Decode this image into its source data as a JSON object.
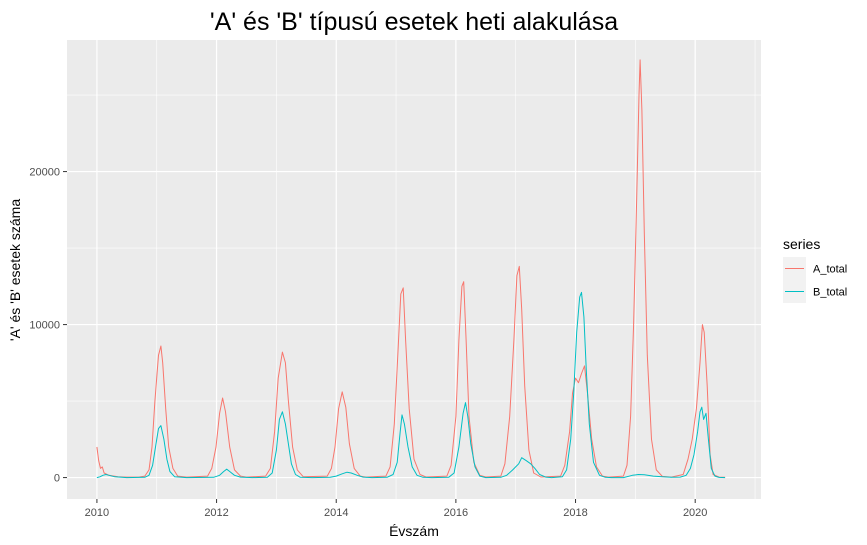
{
  "chart_data": {
    "type": "line",
    "title": "'A' és 'B' típusú esetek heti alakulása",
    "xlabel": "Évszám",
    "ylabel": "'A' és 'B' esetek száma",
    "x_ticks": [
      2010,
      2012,
      2014,
      2016,
      2018,
      2020
    ],
    "y_ticks": [
      0,
      10000,
      20000
    ],
    "xlim": [
      2009.5,
      2021.1
    ],
    "ylim": [
      -1400,
      28600
    ],
    "grid": true,
    "legend": {
      "title": "series",
      "placement": "right"
    },
    "series": [
      {
        "name": "A_total",
        "color": "#F8766D",
        "points": [
          [
            2010.0,
            2000
          ],
          [
            2010.03,
            1100
          ],
          [
            2010.06,
            600
          ],
          [
            2010.09,
            700
          ],
          [
            2010.12,
            300
          ],
          [
            2010.2,
            150
          ],
          [
            2010.35,
            60
          ],
          [
            2010.5,
            30
          ],
          [
            2010.7,
            30
          ],
          [
            2010.8,
            100
          ],
          [
            2010.87,
            500
          ],
          [
            2010.92,
            2000
          ],
          [
            2010.97,
            5000
          ],
          [
            2011.03,
            8000
          ],
          [
            2011.07,
            8600
          ],
          [
            2011.1,
            7500
          ],
          [
            2011.15,
            4500
          ],
          [
            2011.2,
            2000
          ],
          [
            2011.27,
            600
          ],
          [
            2011.35,
            100
          ],
          [
            2011.5,
            30
          ],
          [
            2011.85,
            100
          ],
          [
            2011.92,
            600
          ],
          [
            2011.99,
            2000
          ],
          [
            2012.05,
            4200
          ],
          [
            2012.1,
            5200
          ],
          [
            2012.15,
            4300
          ],
          [
            2012.22,
            2000
          ],
          [
            2012.3,
            500
          ],
          [
            2012.4,
            100
          ],
          [
            2012.5,
            30
          ],
          [
            2012.82,
            100
          ],
          [
            2012.9,
            600
          ],
          [
            2012.97,
            3000
          ],
          [
            2013.03,
            6500
          ],
          [
            2013.1,
            8200
          ],
          [
            2013.15,
            7500
          ],
          [
            2013.2,
            5000
          ],
          [
            2013.27,
            2000
          ],
          [
            2013.35,
            500
          ],
          [
            2013.45,
            50
          ],
          [
            2013.85,
            100
          ],
          [
            2013.92,
            600
          ],
          [
            2013.98,
            2000
          ],
          [
            2014.04,
            4500
          ],
          [
            2014.1,
            5600
          ],
          [
            2014.16,
            4600
          ],
          [
            2014.22,
            2200
          ],
          [
            2014.3,
            600
          ],
          [
            2014.4,
            100
          ],
          [
            2014.5,
            30
          ],
          [
            2014.83,
            100
          ],
          [
            2014.9,
            700
          ],
          [
            2014.97,
            3500
          ],
          [
            2015.03,
            8000
          ],
          [
            2015.08,
            12000
          ],
          [
            2015.12,
            12400
          ],
          [
            2015.16,
            9000
          ],
          [
            2015.22,
            4500
          ],
          [
            2015.3,
            1200
          ],
          [
            2015.4,
            200
          ],
          [
            2015.5,
            40
          ],
          [
            2015.85,
            100
          ],
          [
            2015.92,
            800
          ],
          [
            2016.0,
            4000
          ],
          [
            2016.05,
            9000
          ],
          [
            2016.1,
            12500
          ],
          [
            2016.13,
            12800
          ],
          [
            2016.17,
            9000
          ],
          [
            2016.22,
            4000
          ],
          [
            2016.3,
            1000
          ],
          [
            2016.4,
            150
          ],
          [
            2016.5,
            40
          ],
          [
            2016.75,
            100
          ],
          [
            2016.82,
            900
          ],
          [
            2016.9,
            4000
          ],
          [
            2016.97,
            9000
          ],
          [
            2017.02,
            13200
          ],
          [
            2017.06,
            13800
          ],
          [
            2017.1,
            11000
          ],
          [
            2017.15,
            6000
          ],
          [
            2017.22,
            1800
          ],
          [
            2017.3,
            300
          ],
          [
            2017.42,
            40
          ],
          [
            2017.75,
            100
          ],
          [
            2017.82,
            800
          ],
          [
            2017.9,
            3000
          ],
          [
            2017.95,
            5500
          ],
          [
            2018.0,
            6500
          ],
          [
            2018.05,
            6200
          ],
          [
            2018.1,
            6800
          ],
          [
            2018.15,
            7300
          ],
          [
            2018.2,
            5500
          ],
          [
            2018.27,
            2500
          ],
          [
            2018.35,
            700
          ],
          [
            2018.45,
            100
          ],
          [
            2018.55,
            30
          ],
          [
            2018.8,
            100
          ],
          [
            2018.86,
            800
          ],
          [
            2018.92,
            4000
          ],
          [
            2018.97,
            10000
          ],
          [
            2019.02,
            18000
          ],
          [
            2019.06,
            25000
          ],
          [
            2019.08,
            27300
          ],
          [
            2019.11,
            24000
          ],
          [
            2019.15,
            16000
          ],
          [
            2019.2,
            8000
          ],
          [
            2019.27,
            2500
          ],
          [
            2019.35,
            500
          ],
          [
            2019.45,
            80
          ],
          [
            2019.6,
            30
          ],
          [
            2019.8,
            200
          ],
          [
            2019.88,
            1200
          ],
          [
            2019.95,
            2500
          ],
          [
            2020.02,
            4500
          ],
          [
            2020.08,
            7500
          ],
          [
            2020.12,
            10000
          ],
          [
            2020.15,
            9500
          ],
          [
            2020.2,
            6000
          ],
          [
            2020.25,
            1500
          ],
          [
            2020.3,
            200
          ],
          [
            2020.4,
            30
          ],
          [
            2020.5,
            20
          ]
        ]
      },
      {
        "name": "B_total",
        "color": "#00BFC4",
        "points": [
          [
            2010.0,
            0
          ],
          [
            2010.05,
            50
          ],
          [
            2010.1,
            150
          ],
          [
            2010.15,
            200
          ],
          [
            2010.2,
            150
          ],
          [
            2010.3,
            50
          ],
          [
            2010.5,
            0
          ],
          [
            2010.8,
            20
          ],
          [
            2010.87,
            150
          ],
          [
            2010.93,
            800
          ],
          [
            2010.98,
            2000
          ],
          [
            2011.03,
            3200
          ],
          [
            2011.07,
            3400
          ],
          [
            2011.12,
            2500
          ],
          [
            2011.17,
            1200
          ],
          [
            2011.22,
            400
          ],
          [
            2011.3,
            50
          ],
          [
            2011.5,
            0
          ],
          [
            2011.95,
            20
          ],
          [
            2012.05,
            150
          ],
          [
            2012.12,
            400
          ],
          [
            2012.17,
            550
          ],
          [
            2012.22,
            400
          ],
          [
            2012.3,
            150
          ],
          [
            2012.4,
            30
          ],
          [
            2012.6,
            0
          ],
          [
            2012.85,
            20
          ],
          [
            2012.93,
            300
          ],
          [
            2013.0,
            1800
          ],
          [
            2013.05,
            3800
          ],
          [
            2013.1,
            4300
          ],
          [
            2013.15,
            3500
          ],
          [
            2013.2,
            2200
          ],
          [
            2013.25,
            900
          ],
          [
            2013.32,
            200
          ],
          [
            2013.4,
            20
          ],
          [
            2013.6,
            0
          ],
          [
            2013.9,
            20
          ],
          [
            2014.0,
            100
          ],
          [
            2014.1,
            250
          ],
          [
            2014.18,
            350
          ],
          [
            2014.25,
            300
          ],
          [
            2014.35,
            150
          ],
          [
            2014.45,
            30
          ],
          [
            2014.6,
            0
          ],
          [
            2014.85,
            20
          ],
          [
            2014.95,
            200
          ],
          [
            2015.02,
            1000
          ],
          [
            2015.07,
            3000
          ],
          [
            2015.1,
            4100
          ],
          [
            2015.14,
            3500
          ],
          [
            2015.2,
            2000
          ],
          [
            2015.27,
            700
          ],
          [
            2015.35,
            150
          ],
          [
            2015.45,
            20
          ],
          [
            2015.6,
            0
          ],
          [
            2015.88,
            20
          ],
          [
            2015.97,
            300
          ],
          [
            2016.05,
            2000
          ],
          [
            2016.12,
            4200
          ],
          [
            2016.16,
            4900
          ],
          [
            2016.2,
            4000
          ],
          [
            2016.25,
            2200
          ],
          [
            2016.32,
            700
          ],
          [
            2016.4,
            100
          ],
          [
            2016.5,
            0
          ],
          [
            2016.75,
            20
          ],
          [
            2016.85,
            150
          ],
          [
            2016.95,
            500
          ],
          [
            2017.05,
            900
          ],
          [
            2017.1,
            1300
          ],
          [
            2017.18,
            1100
          ],
          [
            2017.25,
            900
          ],
          [
            2017.32,
            600
          ],
          [
            2017.4,
            200
          ],
          [
            2017.5,
            30
          ],
          [
            2017.6,
            0
          ],
          [
            2017.78,
            50
          ],
          [
            2017.85,
            500
          ],
          [
            2017.92,
            2500
          ],
          [
            2017.97,
            5500
          ],
          [
            2018.02,
            9500
          ],
          [
            2018.07,
            11800
          ],
          [
            2018.1,
            12100
          ],
          [
            2018.14,
            10500
          ],
          [
            2018.18,
            7000
          ],
          [
            2018.23,
            3500
          ],
          [
            2018.3,
            1000
          ],
          [
            2018.4,
            150
          ],
          [
            2018.5,
            20
          ],
          [
            2018.6,
            0
          ],
          [
            2018.8,
            0
          ],
          [
            2018.95,
            150
          ],
          [
            2019.05,
            200
          ],
          [
            2019.15,
            180
          ],
          [
            2019.3,
            100
          ],
          [
            2019.45,
            50
          ],
          [
            2019.6,
            20
          ],
          [
            2019.75,
            30
          ],
          [
            2019.85,
            150
          ],
          [
            2019.92,
            600
          ],
          [
            2019.98,
            1500
          ],
          [
            2020.04,
            3000
          ],
          [
            2020.08,
            4300
          ],
          [
            2020.11,
            4600
          ],
          [
            2020.14,
            3800
          ],
          [
            2020.18,
            4200
          ],
          [
            2020.22,
            2500
          ],
          [
            2020.27,
            600
          ],
          [
            2020.33,
            100
          ],
          [
            2020.4,
            10
          ],
          [
            2020.5,
            0
          ]
        ]
      }
    ]
  }
}
